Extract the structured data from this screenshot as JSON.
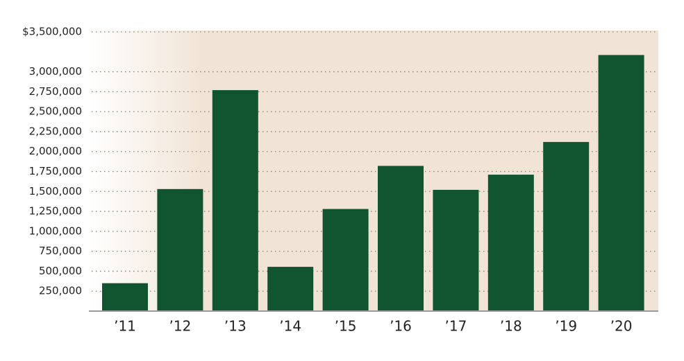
{
  "chart_data": {
    "type": "bar",
    "categories": [
      "’11",
      "’12",
      "’13",
      "’14",
      "’15",
      "’16",
      "’17",
      "’18",
      "’19",
      "’20"
    ],
    "values": [
      350000,
      1530000,
      2770000,
      555000,
      1280000,
      1820000,
      1520000,
      1710000,
      2120000,
      3210000
    ],
    "color": "#115430",
    "ylim": [
      0,
      3500000
    ],
    "yticks": [
      {
        "value": 250000,
        "label": "250,000"
      },
      {
        "value": 500000,
        "label": "500,000"
      },
      {
        "value": 750000,
        "label": "750,000"
      },
      {
        "value": 1000000,
        "label": "1,000,000"
      },
      {
        "value": 1250000,
        "label": "1,250,000"
      },
      {
        "value": 1500000,
        "label": "1,500,000"
      },
      {
        "value": 1750000,
        "label": "1,750,000"
      },
      {
        "value": 2000000,
        "label": "2,000,000"
      },
      {
        "value": 2250000,
        "label": "2,250,000"
      },
      {
        "value": 2500000,
        "label": "2,500,000"
      },
      {
        "value": 2750000,
        "label": "2,750,000"
      },
      {
        "value": 3000000,
        "label": "3,000,000"
      },
      {
        "value": 3500000,
        "label": "$3,500,000"
      }
    ],
    "grid": true
  }
}
